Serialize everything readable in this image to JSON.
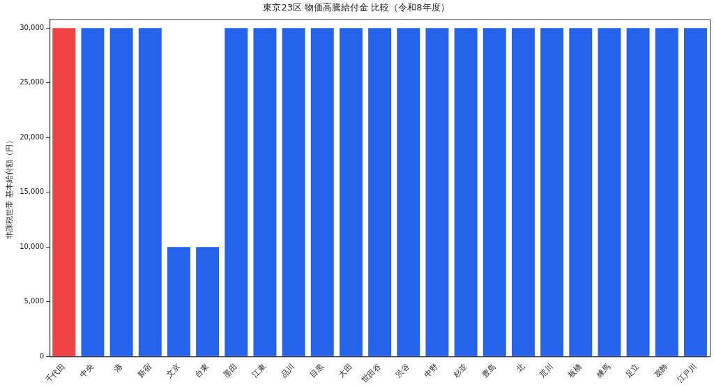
{
  "chart_data": {
    "type": "bar",
    "title": "東京23区 物価高騰給付金 比較（令和8年度）",
    "ylabel": "非課税世帯 基本給付額（円）",
    "categories": [
      "千代田",
      "中央",
      "港",
      "新宿",
      "文京",
      "台東",
      "墨田",
      "江東",
      "品川",
      "目黒",
      "大田",
      "世田谷",
      "渋谷",
      "中野",
      "杉並",
      "豊島",
      "北",
      "荒川",
      "板橋",
      "練馬",
      "足立",
      "葛飾",
      "江戸川"
    ],
    "values": [
      30000,
      30000,
      30000,
      30000,
      10000,
      10000,
      30000,
      30000,
      30000,
      30000,
      30000,
      30000,
      30000,
      30000,
      30000,
      30000,
      30000,
      30000,
      30000,
      30000,
      30000,
      30000,
      30000
    ],
    "colors": [
      "#ef4444",
      "#2563eb",
      "#2563eb",
      "#2563eb",
      "#2563eb",
      "#2563eb",
      "#2563eb",
      "#2563eb",
      "#2563eb",
      "#2563eb",
      "#2563eb",
      "#2563eb",
      "#2563eb",
      "#2563eb",
      "#2563eb",
      "#2563eb",
      "#2563eb",
      "#2563eb",
      "#2563eb",
      "#2563eb",
      "#2563eb",
      "#2563eb",
      "#2563eb"
    ],
    "ylim": [
      0,
      30800
    ],
    "yticks": [
      0,
      {
        "value": 5000,
        "label": "5,000"
      },
      {
        "value": 10000,
        "label": "10,000"
      },
      {
        "value": 15000,
        "label": "15,000"
      },
      {
        "value": 20000,
        "label": "20,000"
      },
      {
        "value": 25000,
        "label": "25,000"
      },
      {
        "value": 30000,
        "label": "30,000"
      }
    ],
    "grid": false,
    "legend": false
  }
}
